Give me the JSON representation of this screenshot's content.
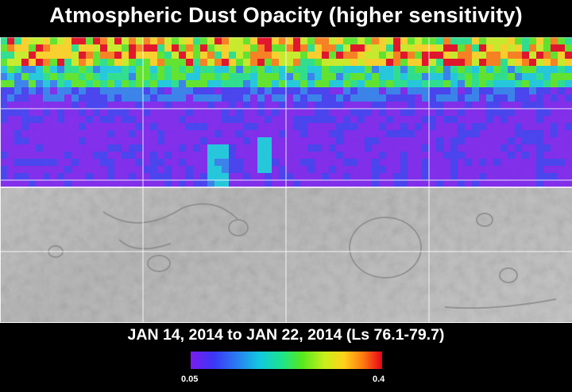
{
  "title": "Atmospheric Dust Opacity (higher sensitivity)",
  "date_range": "JAN 14, 2014 to JAN 22, 2014 (Ls 76.1-79.7)",
  "colorbar": {
    "min_label": "0.05",
    "max_label": "0.4",
    "colors": [
      "#7a1cf0",
      "#3b36f5",
      "#2a7cf0",
      "#12c9e0",
      "#1ee38a",
      "#55e81e",
      "#c8f01a",
      "#ffd21a",
      "#ff7a10",
      "#e6001a"
    ]
  },
  "map": {
    "data_coverage": "northern half",
    "base_shading": "grayscale relief",
    "grid_lines": true
  }
}
